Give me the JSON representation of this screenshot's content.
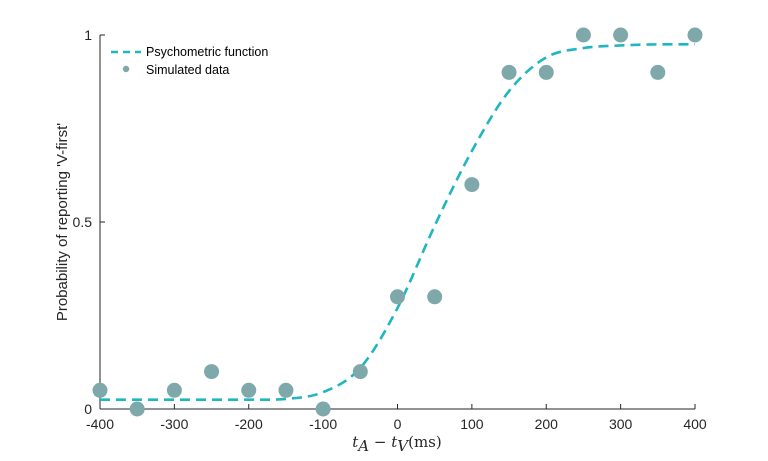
{
  "chart_data": {
    "type": "scatter",
    "xlabel": {
      "t1": "t",
      "s1": "A",
      "op": " − ",
      "t2": "t",
      "s2": "V",
      "unit": "(ms)"
    },
    "ylabel": "Probability of reporting 'V-first'",
    "xlim": [
      -400,
      400
    ],
    "ylim": [
      0,
      1
    ],
    "xticks": [
      -400,
      -300,
      -200,
      -100,
      0,
      100,
      200,
      300,
      400
    ],
    "xtick_labels": [
      "-400",
      "-300",
      "-200",
      "-100",
      "0",
      "100",
      "200",
      "300",
      "400"
    ],
    "yticks": [
      0,
      0.5,
      1
    ],
    "ytick_labels": [
      "0",
      "0.5",
      "1"
    ],
    "legend_position": "top-left",
    "series": [
      {
        "name": "Psychometric function",
        "kind": "line",
        "style": "dashed",
        "color": "#1fb5c1",
        "x": [
          -400,
          -300,
          -200,
          -150,
          -100,
          -50,
          0,
          50,
          100,
          150,
          200,
          250,
          300,
          350,
          400
        ],
        "y": [
          0.025,
          0.025,
          0.025,
          0.027,
          0.045,
          0.11,
          0.27,
          0.49,
          0.69,
          0.85,
          0.94,
          0.965,
          0.972,
          0.975,
          0.975
        ]
      },
      {
        "name": "Simulated data",
        "kind": "scatter",
        "color": "#7fa8ab",
        "x": [
          -400,
          -350,
          -300,
          -250,
          -200,
          -150,
          -100,
          -50,
          0,
          50,
          100,
          150,
          200,
          250,
          300,
          350,
          400
        ],
        "y": [
          0.05,
          0.0,
          0.05,
          0.1,
          0.05,
          0.05,
          0.0,
          0.1,
          0.3,
          0.3,
          0.6,
          0.9,
          0.9,
          1.0,
          1.0,
          0.9,
          1.0
        ]
      }
    ]
  }
}
